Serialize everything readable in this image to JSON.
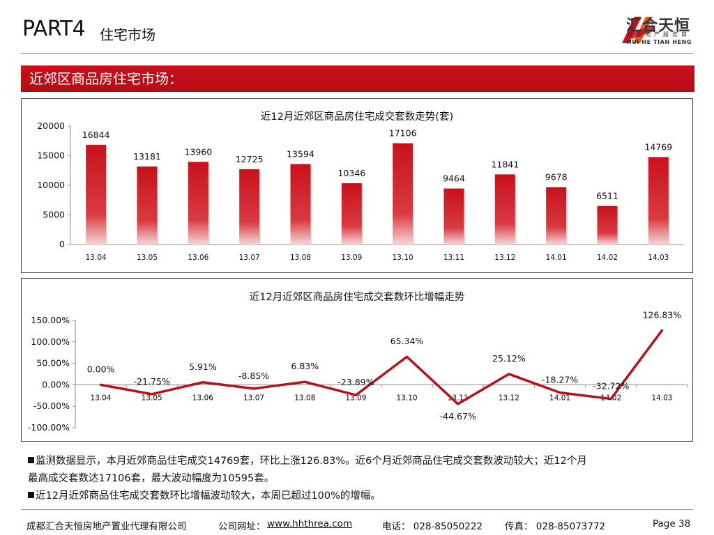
{
  "header": {
    "part": "PART4",
    "subtitle": "住宅市场",
    "logo": {
      "cn": "汇合天恒",
      "sub": "专业地产服务商",
      "en": "HUI HE TIAN HENG",
      "color_red": "#c8111b",
      "color_orange": "#e35a1b",
      "icon": "hh-logo-mark"
    }
  },
  "banner": {
    "text": "近郊区商品房住宅市场：",
    "color": "#c8111b"
  },
  "chart_data": [
    {
      "type": "bar",
      "title": "近12月近郊区商品房住宅成交套数走势(套)",
      "categories": [
        "13.04",
        "13.05",
        "13.06",
        "13.07",
        "13.08",
        "13.09",
        "13.10",
        "13.11",
        "13.12",
        "14.01",
        "14.02",
        "14.03"
      ],
      "values": [
        16844,
        13181,
        13960,
        12725,
        13594,
        10346,
        17106,
        9464,
        11841,
        9678,
        6511,
        14769
      ],
      "ylim": [
        0,
        20000
      ],
      "yticks": [
        "0",
        "5000",
        "10000",
        "15000",
        "20000"
      ],
      "grid": false,
      "legend": "none",
      "bar_color": "#c8111b"
    },
    {
      "type": "line",
      "title": "近12月近郊区商品房住宅成交套数环比增幅走势",
      "categories": [
        "13.04",
        "13.05",
        "13.06",
        "13.07",
        "13.08",
        "13.09",
        "13.10",
        "13.11",
        "13.12",
        "14.01",
        "14.02",
        "14.03"
      ],
      "values": [
        0.0,
        -21.75,
        5.91,
        -8.85,
        6.83,
        -23.89,
        65.34,
        -44.67,
        25.12,
        -18.27,
        -32.72,
        126.83
      ],
      "labels": [
        "0.00%",
        "-21.75%",
        "5.91%",
        "-8.85%",
        "6.83%",
        "-23.89%",
        "65.34%",
        "-44.67%",
        "25.12%",
        "-18.27%",
        "-32.72%",
        "126.83%"
      ],
      "ylim": [
        -100,
        150
      ],
      "yticks": [
        "-100.00%",
        "-50.00%",
        "0.00%",
        "50.00%",
        "100.00%",
        "150.00%"
      ],
      "grid": false,
      "legend": "none",
      "line_color": "#b5121b"
    }
  ],
  "notes": [
    "监测数据显示，本月近郊商品住宅成交14769套，环比上涨126.83%。近6个月近郊商品住宅成交套数波动较大；近12个月",
    "最高成交套数达17106套，最大波动幅度为10595套。",
    "近12月近郊商品住宅成交套数环比增幅波动较大，本周已超过100%的增幅。"
  ],
  "footer": {
    "company": "成都汇合天恒房地产置业代理有限公司",
    "site_label": "公司网址：",
    "site": "www.hhthrea.com",
    "phone": "电话： 028-85050222",
    "fax": "传真： 028-85073772",
    "page": "Page 38"
  }
}
